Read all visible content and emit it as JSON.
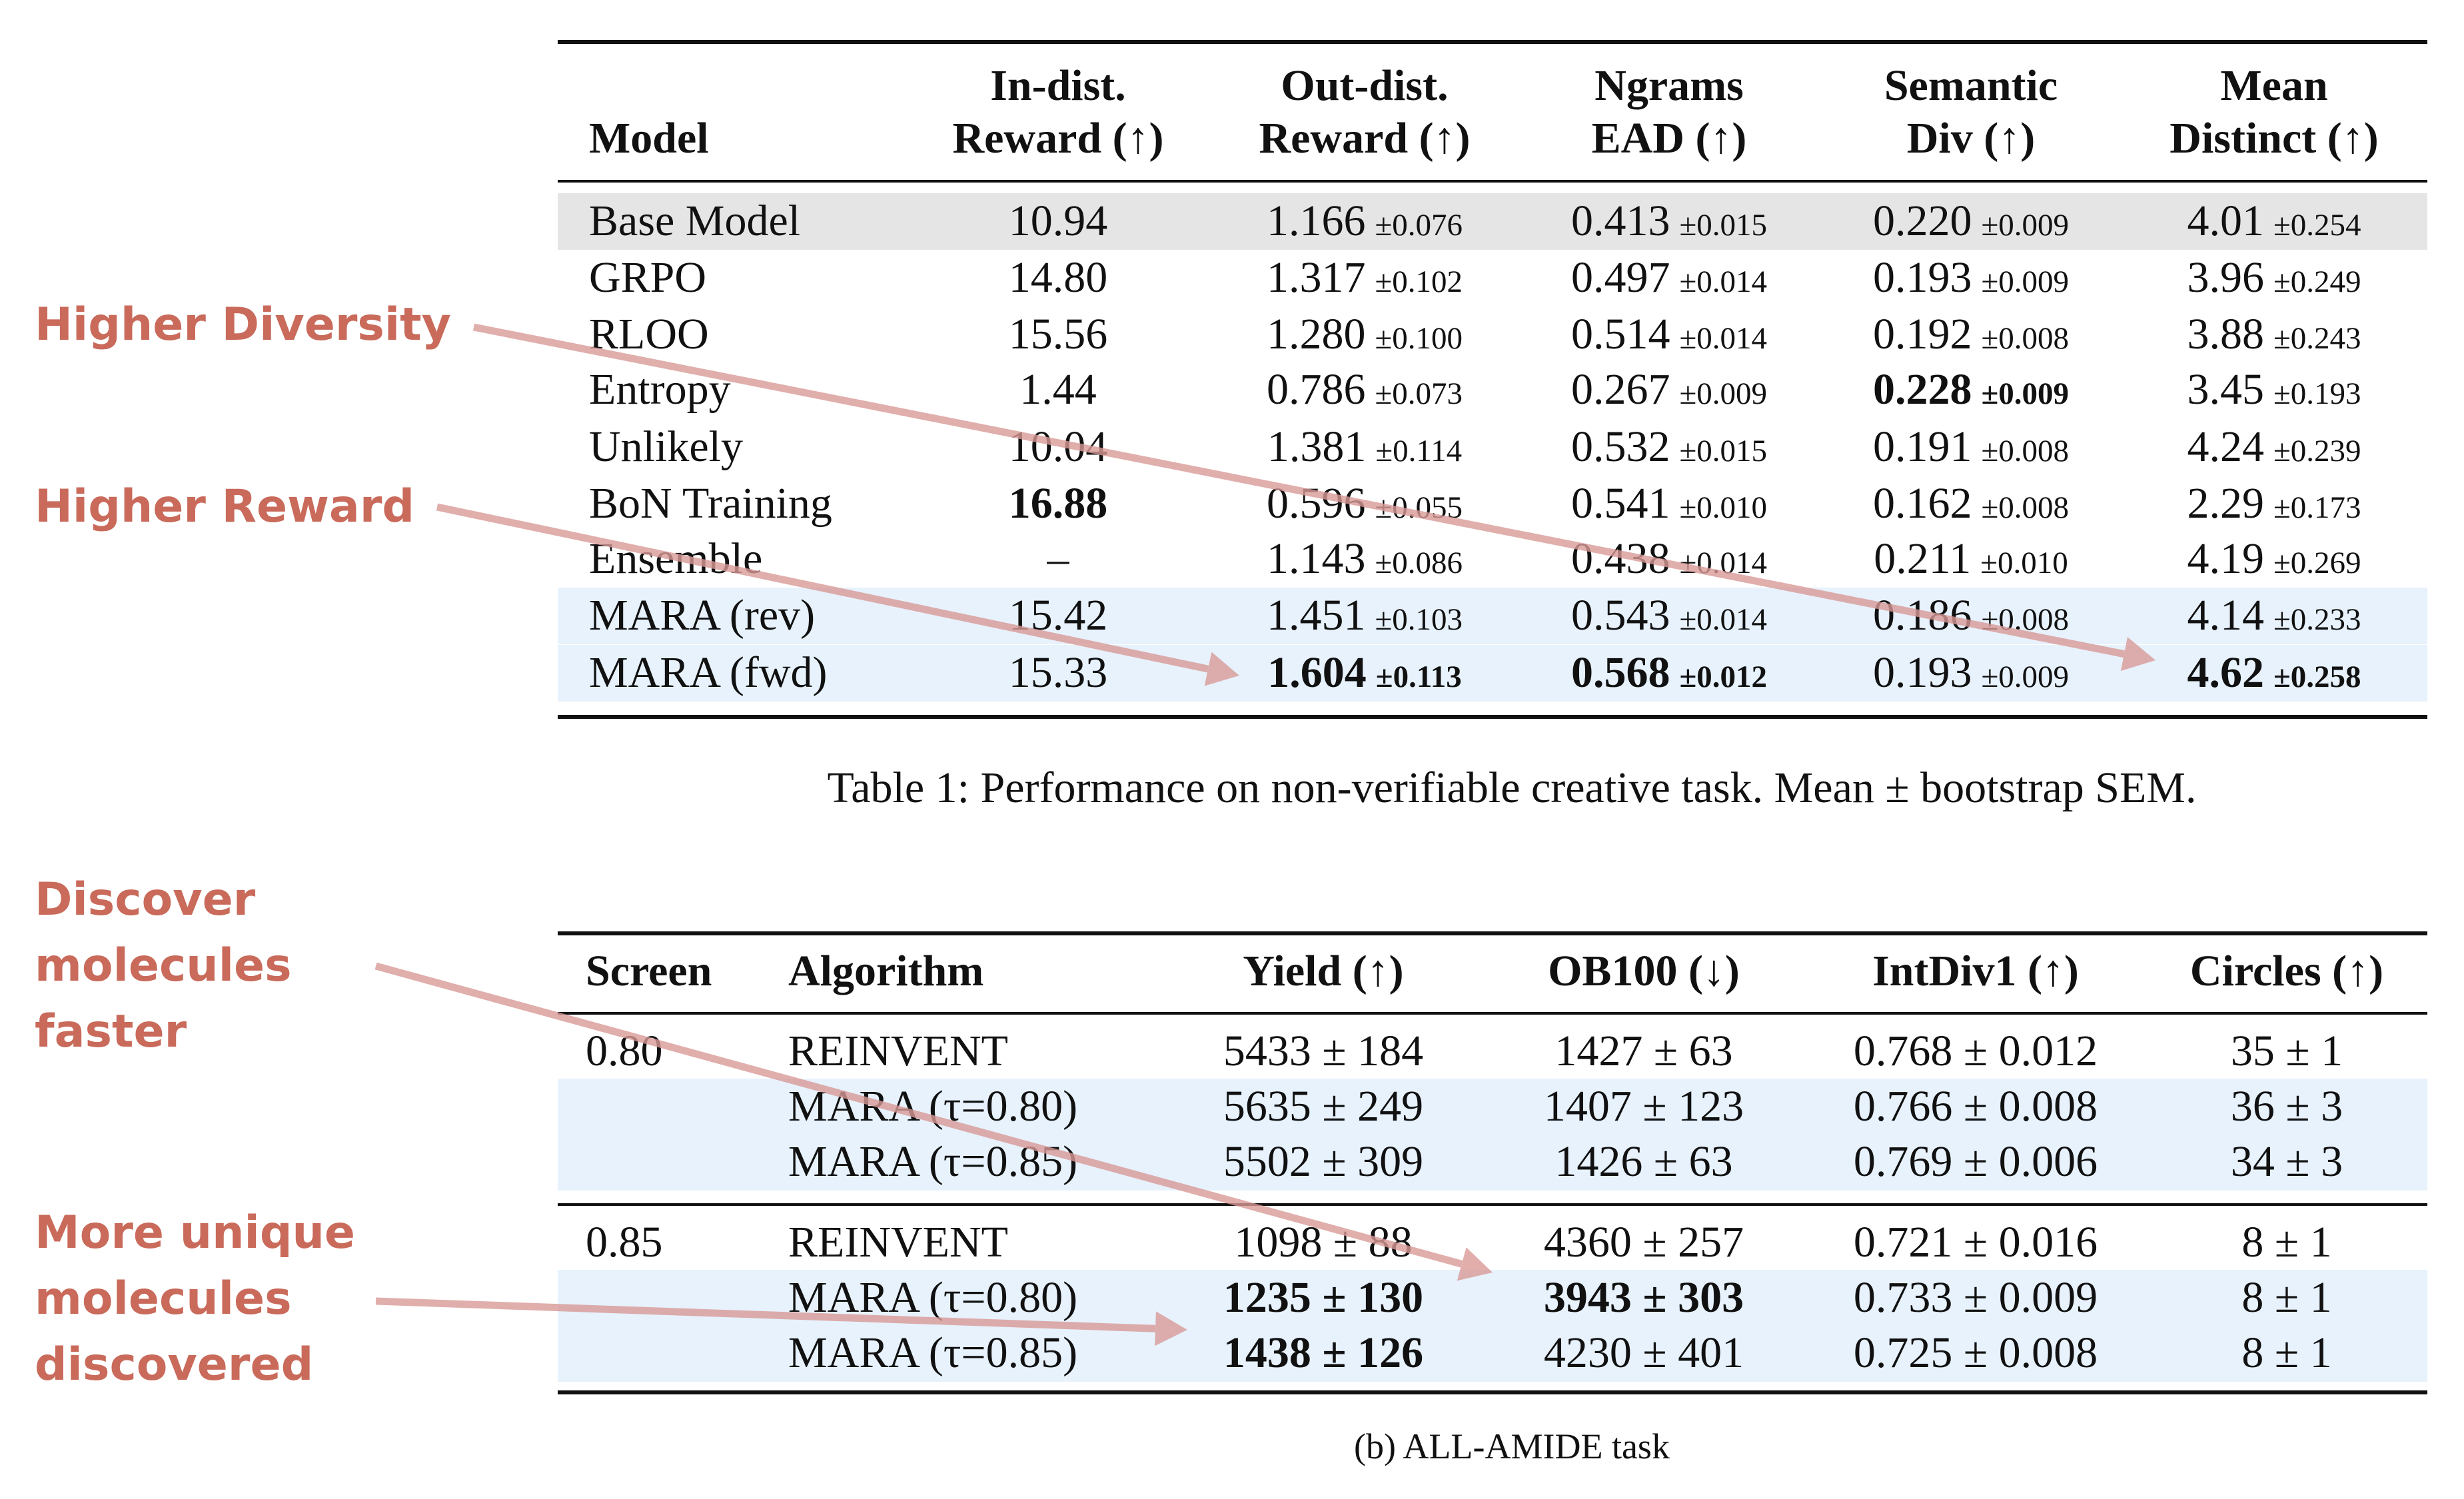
{
  "colors": {
    "annotation": "#c96a5b",
    "arrow": "#d99a97",
    "baseline_row": "#e5e5e5",
    "highlight_row": "#e7f2fd"
  },
  "table1": {
    "headers": [
      [
        "",
        "Model"
      ],
      [
        "In-dist.",
        "Reward (↑)"
      ],
      [
        "Out-dist.",
        "Reward (↑)"
      ],
      [
        "Ngrams",
        "EAD (↑)"
      ],
      [
        "Semantic",
        "Div (↑)"
      ],
      [
        "Mean",
        "Distinct (↑)"
      ]
    ],
    "rows": [
      {
        "model": "Base Model",
        "shade": "gray",
        "cells": [
          {
            "v": "10.94"
          },
          {
            "v": "1.166",
            "sem": "±0.076"
          },
          {
            "v": "0.413",
            "sem": "±0.015"
          },
          {
            "v": "0.220",
            "sem": "±0.009"
          },
          {
            "v": "4.01",
            "sem": "±0.254"
          }
        ]
      },
      {
        "model": "GRPO",
        "cells": [
          {
            "v": "14.80"
          },
          {
            "v": "1.317",
            "sem": "±0.102"
          },
          {
            "v": "0.497",
            "sem": "±0.014"
          },
          {
            "v": "0.193",
            "sem": "±0.009"
          },
          {
            "v": "3.96",
            "sem": "±0.249"
          }
        ]
      },
      {
        "model": "RLOO",
        "cells": [
          {
            "v": "15.56"
          },
          {
            "v": "1.280",
            "sem": "±0.100"
          },
          {
            "v": "0.514",
            "sem": "±0.014"
          },
          {
            "v": "0.192",
            "sem": "±0.008"
          },
          {
            "v": "3.88",
            "sem": "±0.243"
          }
        ]
      },
      {
        "model": "Entropy",
        "cells": [
          {
            "v": "1.44"
          },
          {
            "v": "0.786",
            "sem": "±0.073"
          },
          {
            "v": "0.267",
            "sem": "±0.009"
          },
          {
            "v": "0.228",
            "sem": "±0.009",
            "bold": true
          },
          {
            "v": "3.45",
            "sem": "±0.193"
          }
        ]
      },
      {
        "model": "Unlikely",
        "cells": [
          {
            "v": "10.04"
          },
          {
            "v": "1.381",
            "sem": "±0.114"
          },
          {
            "v": "0.532",
            "sem": "±0.015"
          },
          {
            "v": "0.191",
            "sem": "±0.008"
          },
          {
            "v": "4.24",
            "sem": "±0.239"
          }
        ]
      },
      {
        "model": "BoN Training",
        "cells": [
          {
            "v": "16.88",
            "bold": true
          },
          {
            "v": "0.596",
            "sem": "±0.055"
          },
          {
            "v": "0.541",
            "sem": "±0.010"
          },
          {
            "v": "0.162",
            "sem": "±0.008"
          },
          {
            "v": "2.29",
            "sem": "±0.173"
          }
        ]
      },
      {
        "model": "Ensemble",
        "cells": [
          {
            "v": "–"
          },
          {
            "v": "1.143",
            "sem": "±0.086"
          },
          {
            "v": "0.438",
            "sem": "±0.014"
          },
          {
            "v": "0.211",
            "sem": "±0.010"
          },
          {
            "v": "4.19",
            "sem": "±0.269"
          }
        ]
      },
      {
        "model": "MARA (rev)",
        "shade": "blue",
        "cells": [
          {
            "v": "15.42"
          },
          {
            "v": "1.451",
            "sem": "±0.103"
          },
          {
            "v": "0.543",
            "sem": "±0.014"
          },
          {
            "v": "0.186",
            "sem": "±0.008"
          },
          {
            "v": "4.14",
            "sem": "±0.233"
          }
        ]
      },
      {
        "model": "MARA (fwd)",
        "shade": "blue",
        "cells": [
          {
            "v": "15.33"
          },
          {
            "v": "1.604",
            "sem": "±0.113",
            "bold": true
          },
          {
            "v": "0.568",
            "sem": "±0.012",
            "bold": true
          },
          {
            "v": "0.193",
            "sem": "±0.009"
          },
          {
            "v": "4.62",
            "sem": "±0.258",
            "bold": true
          }
        ]
      }
    ],
    "caption": "Table 1: Performance on non-verifiable creative task. Mean ± bootstrap SEM."
  },
  "table2": {
    "headers": [
      "Screen",
      "Algorithm",
      "Yield (↑)",
      "OB100 (↓)",
      "IntDiv1 (↑)",
      "Circles (↑)"
    ],
    "rows": [
      {
        "screen": "0.80",
        "algo": "REINVENT",
        "cells": [
          {
            "v": "5433 ± 184"
          },
          {
            "v": "1427 ± 63"
          },
          {
            "v": "0.768 ± 0.012"
          },
          {
            "v": "35 ± 1"
          }
        ]
      },
      {
        "screen": "",
        "algo": "MARA (τ=0.80)",
        "shade": "blue",
        "cells": [
          {
            "v": "5635 ± 249"
          },
          {
            "v": "1407 ± 123"
          },
          {
            "v": "0.766 ± 0.008"
          },
          {
            "v": "36 ± 3"
          }
        ]
      },
      {
        "screen": "",
        "algo": "MARA (τ=0.85)",
        "shade": "blue",
        "cells": [
          {
            "v": "5502 ± 309"
          },
          {
            "v": "1426 ± 63"
          },
          {
            "v": "0.769 ± 0.006"
          },
          {
            "v": "34 ± 3"
          }
        ]
      },
      {
        "screen": "0.85",
        "algo": "REINVENT",
        "cells": [
          {
            "v": "1098 ± 88"
          },
          {
            "v": "4360 ± 257"
          },
          {
            "v": "0.721 ± 0.016"
          },
          {
            "v": "8 ± 1"
          }
        ]
      },
      {
        "screen": "",
        "algo": "MARA (τ=0.80)",
        "shade": "blue",
        "cells": [
          {
            "v": "1235 ± 130",
            "bold": true
          },
          {
            "v": "3943 ± 303",
            "bold": true
          },
          {
            "v": "0.733 ± 0.009"
          },
          {
            "v": "8 ± 1"
          }
        ]
      },
      {
        "screen": "",
        "algo": "MARA (τ=0.85)",
        "shade": "blue",
        "cells": [
          {
            "v": "1438 ± 126",
            "bold": true
          },
          {
            "v": "4230 ± 401"
          },
          {
            "v": "0.725 ± 0.008"
          },
          {
            "v": "8 ± 1"
          }
        ]
      }
    ],
    "caption": "(b) ALL-AMIDE task"
  },
  "annotations": [
    {
      "lines": [
        "Higher Diversity"
      ]
    },
    {
      "lines": [
        "Higher Reward"
      ]
    },
    {
      "lines": [
        "Discover",
        "molecules",
        "faster"
      ]
    },
    {
      "lines": [
        "More unique",
        "molecules",
        "discovered"
      ]
    }
  ]
}
